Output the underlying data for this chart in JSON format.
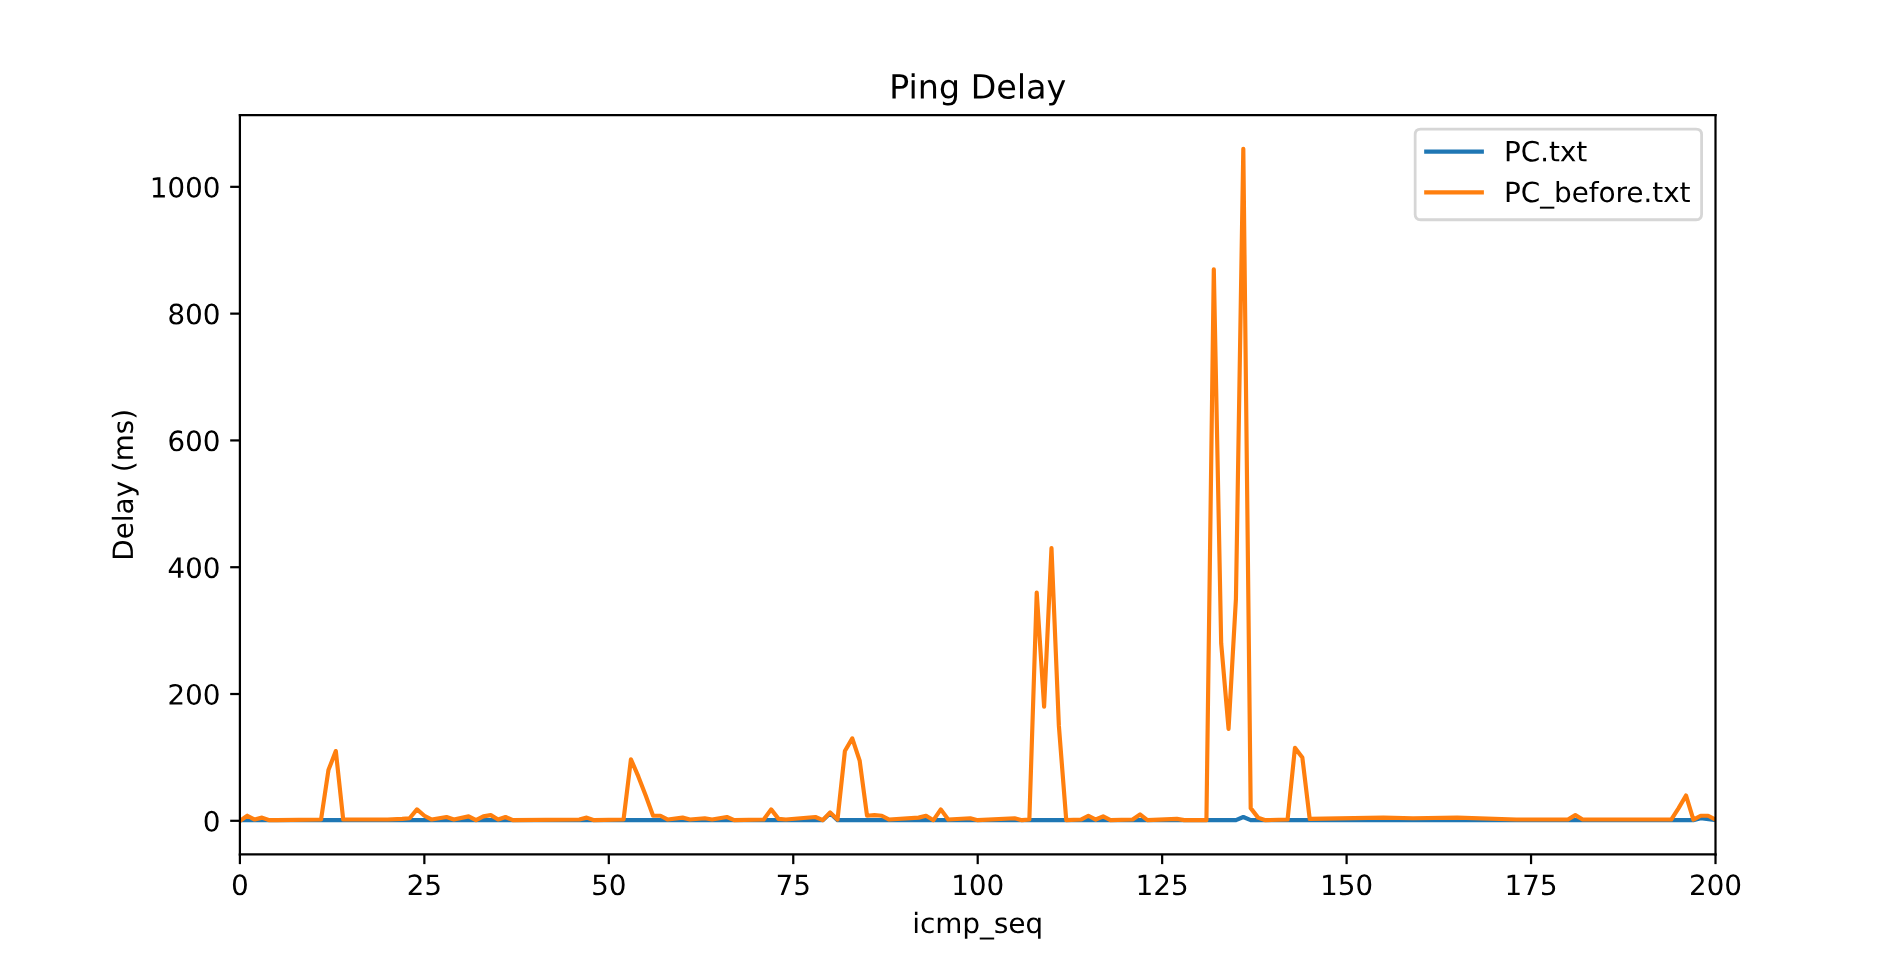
{
  "chart_data": {
    "type": "line",
    "title": "Ping Delay",
    "xlabel": "icmp_seq",
    "ylabel": "Delay (ms)",
    "xlim": [
      0,
      200
    ],
    "xticks": [
      0,
      25,
      50,
      75,
      100,
      125,
      150,
      175,
      200
    ],
    "ylim": [
      -53,
      1113
    ],
    "yticks": [
      0,
      200,
      400,
      600,
      800,
      1000
    ],
    "legend": "top right",
    "grid": false,
    "series": [
      {
        "name": "PC.txt",
        "color": "#1f77b4",
        "x": [
          0,
          79,
          80,
          81,
          135,
          136,
          137,
          197,
          198,
          200
        ],
        "values": [
          1,
          1,
          12,
          1,
          1,
          6,
          1,
          1,
          4,
          1
        ]
      },
      {
        "name": "PC_before.txt",
        "color": "#ff7f0e",
        "x": [
          0,
          1,
          2,
          3,
          4,
          5,
          11,
          12,
          13,
          14,
          20,
          22,
          23,
          24,
          25,
          26,
          28,
          29,
          31,
          32,
          33,
          34,
          35,
          36,
          37,
          46,
          47,
          48,
          52,
          53,
          54,
          55,
          56,
          57,
          58,
          60,
          61,
          63,
          64,
          66,
          67,
          71,
          72,
          73,
          74,
          78,
          79,
          80,
          81,
          82,
          83,
          84,
          85,
          86,
          87,
          88,
          92,
          93,
          94,
          95,
          96,
          99,
          100,
          105,
          106,
          107,
          108,
          109,
          110,
          111,
          112,
          114,
          115,
          116,
          117,
          118,
          121,
          122,
          123,
          127,
          128,
          131,
          132,
          133,
          134,
          135,
          136,
          137,
          138,
          139,
          142,
          143,
          144,
          145,
          155,
          159,
          165,
          173,
          180,
          181,
          182,
          194,
          195,
          196,
          197,
          198,
          199,
          200
        ],
        "values": [
          0,
          8,
          2,
          5,
          1,
          1,
          2,
          80,
          110,
          2,
          2,
          3,
          4,
          18,
          8,
          2,
          6,
          2,
          7,
          1,
          7,
          9,
          2,
          6,
          1,
          2,
          5,
          1,
          2,
          97,
          70,
          40,
          8,
          8,
          2,
          5,
          2,
          4,
          2,
          6,
          1,
          2,
          18,
          3,
          2,
          6,
          1,
          13,
          2,
          110,
          130,
          95,
          8,
          9,
          8,
          2,
          5,
          8,
          1,
          18,
          2,
          4,
          1,
          4,
          1,
          2,
          360,
          180,
          430,
          150,
          1,
          2,
          8,
          2,
          7,
          1,
          2,
          10,
          1,
          3,
          1,
          1,
          870,
          280,
          145,
          350,
          1060,
          20,
          5,
          1,
          2,
          115,
          100,
          3,
          5,
          4,
          5,
          2,
          2,
          9,
          2,
          2,
          20,
          40,
          2,
          8,
          8,
          2
        ]
      }
    ]
  }
}
